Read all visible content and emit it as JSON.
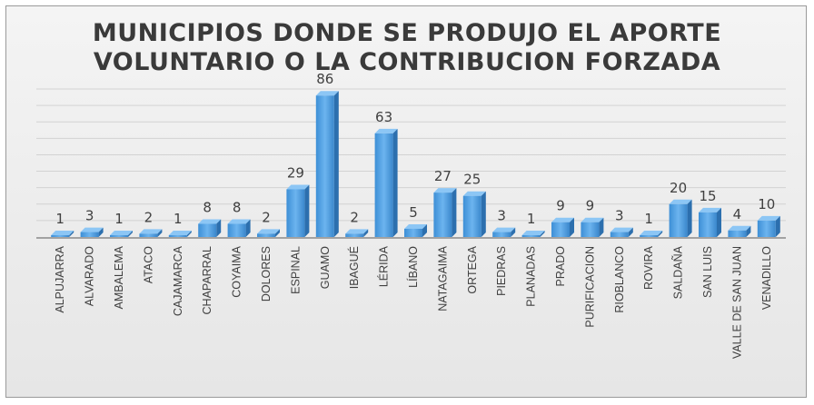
{
  "chart_data": {
    "type": "bar",
    "title_line1": "MUNICIPIOS DONDE SE PRODUJO EL APORTE",
    "title_line2": "VOLUNTARIO O LA CONTRIBUCION FORZADA",
    "categories": [
      "ALPUJARRA",
      "ALVARADO",
      "AMBALEMA",
      "ATACO",
      "CAJAMARCA",
      "CHAPARRAL",
      "COYAIMA",
      "DOLORES",
      "ESPINAL",
      "GUAMO",
      "IBAGUÉ",
      "LÉRIDA",
      "LÍBANO",
      "NATAGAIMA",
      "ORTEGA",
      "PIEDRAS",
      "PLANADAS",
      "PRADO",
      "PURIFICACION",
      "RIOBLANCO",
      "ROVIRA",
      "SALDAÑA",
      "SAN LUIS",
      "VALLE DE SAN JUAN",
      "VENADILLO"
    ],
    "values": [
      1,
      3,
      1,
      2,
      1,
      8,
      8,
      2,
      29,
      86,
      2,
      63,
      5,
      27,
      25,
      3,
      1,
      9,
      9,
      3,
      1,
      20,
      15,
      4,
      10
    ],
    "ylim": [
      0,
      90
    ],
    "grid": true,
    "legend": "none",
    "bar_color": "#4f9ee0"
  }
}
